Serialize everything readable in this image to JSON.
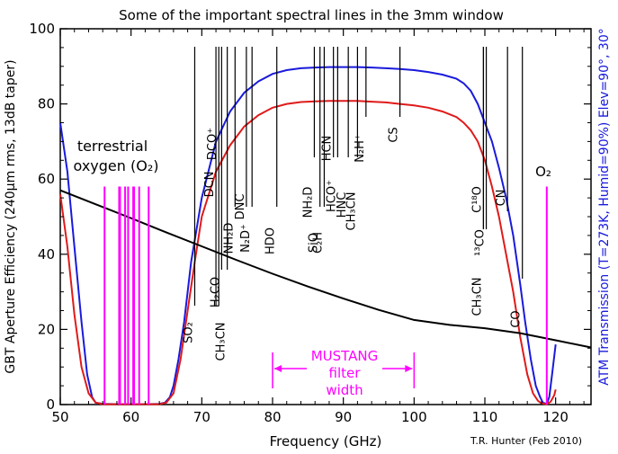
{
  "title": "Some of the important spectral lines in the 3mm window",
  "credit": "T.R. Hunter (Feb 2010)",
  "colors": {
    "blue": "#1a1adc",
    "red": "#e01a1a",
    "magenta": "#ff00ff",
    "black": "#000000"
  },
  "chart_data": {
    "type": "line",
    "title": "Some of the important spectral lines in the 3mm window",
    "xlabel": "Frequency (GHz)",
    "ylabel_left": "GBT Aperture Efficiency (240μm rms, 13dB taper)",
    "ylabel_right": "ATM Transmission (T=273K, Humid=90%) Elev=90°, 30°",
    "xlim": [
      50,
      125
    ],
    "ylim": [
      0,
      100
    ],
    "xticks": [
      50,
      60,
      70,
      80,
      90,
      100,
      110,
      120
    ],
    "yticks": [
      0,
      20,
      40,
      60,
      80,
      100
    ],
    "series": [
      {
        "name": "Elev=90°",
        "color": "#1a1adc",
        "x": [
          50,
          51,
          52,
          53,
          53.8,
          54.5,
          55,
          56,
          58,
          60,
          62,
          64,
          64.8,
          65.5,
          66,
          66.7,
          67.5,
          68.5,
          70,
          72,
          74,
          76,
          78,
          80,
          82,
          84,
          86,
          88,
          90,
          92,
          94,
          96,
          98,
          100,
          102,
          104,
          106,
          107,
          108,
          109,
          110,
          111,
          112,
          113,
          114,
          115,
          115.7,
          116.5,
          117.2,
          117.8,
          118.2,
          118.75,
          119.1,
          119.5,
          120
        ],
        "y": [
          75,
          62,
          42,
          22,
          8,
          2,
          0.5,
          0.2,
          0.1,
          0.1,
          0.1,
          0.2,
          0.5,
          2,
          5,
          12,
          22,
          38,
          55,
          70,
          78,
          83,
          86,
          88,
          89,
          89.5,
          89.7,
          89.8,
          89.8,
          89.8,
          89.7,
          89.5,
          89.3,
          89,
          88.5,
          87.8,
          86.7,
          85.5,
          83.5,
          80,
          75,
          70,
          63,
          55,
          45,
          32,
          22,
          12,
          5,
          2,
          0.5,
          0.2,
          2,
          8,
          16
        ]
      },
      {
        "name": "Elev=30°",
        "color": "#e01a1a",
        "x": [
          50,
          51,
          52,
          53,
          54,
          55,
          56,
          60,
          64,
          65,
          66,
          67,
          68,
          69,
          70,
          72,
          74,
          76,
          78,
          80,
          82,
          84,
          86,
          88,
          90,
          92,
          94,
          96,
          98,
          100,
          102,
          104,
          106,
          107,
          108,
          109,
          110,
          111,
          112,
          113,
          114,
          115,
          116,
          116.8,
          117.5,
          118,
          118.75,
          119.3,
          119.8,
          120
        ],
        "y": [
          56,
          42,
          24,
          10,
          3,
          0.5,
          0.1,
          0.1,
          0.1,
          0.5,
          3,
          12,
          25,
          38,
          50,
          62,
          69,
          74,
          77,
          79,
          80,
          80.5,
          80.7,
          80.8,
          80.8,
          80.8,
          80.6,
          80.4,
          80,
          79.6,
          79,
          78,
          76.5,
          75,
          73,
          70,
          65,
          58,
          50,
          40,
          30,
          18,
          8,
          3,
          1,
          0.3,
          0.1,
          0.8,
          2.5,
          4
        ]
      },
      {
        "name": "GBT Aperture Efficiency",
        "color": "#000000",
        "x": [
          50,
          55,
          60,
          65,
          70,
          75,
          80,
          85,
          90,
          95,
          100,
          105,
          110,
          115,
          120,
          125
        ],
        "y": [
          57,
          53.3,
          49.6,
          45.8,
          42.1,
          38.4,
          34.8,
          31.4,
          28.2,
          25.2,
          22.5,
          21.2,
          20.3,
          19.0,
          17.1,
          15.2
        ]
      }
    ],
    "o2_lines_ghz": [
      56.26,
      58.32,
      58.45,
      59.16,
      59.59,
      60.31,
      60.43,
      61.15,
      62.49
    ],
    "o2_118_ghz": 118.75,
    "spectral_lines": [
      {
        "ghz": 69.0,
        "label": "SO₂"
      },
      {
        "ghz": 72.0,
        "label": "DCN"
      },
      {
        "ghz": 72.4,
        "label": "DCO⁺"
      },
      {
        "ghz": 72.8,
        "label": "H₂CO"
      },
      {
        "ghz": 73.6,
        "label": "CH₃CN"
      },
      {
        "ghz": 74.7,
        "label": "NH₂D"
      },
      {
        "ghz": 76.3,
        "label": "DNC"
      },
      {
        "ghz": 77.1,
        "label": "N₂D⁺"
      },
      {
        "ghz": 80.6,
        "label": "HDO"
      },
      {
        "ghz": 85.9,
        "label": "NH₂D"
      },
      {
        "ghz": 86.7,
        "label": "SiO"
      },
      {
        "ghz": 87.3,
        "label": "C₂H"
      },
      {
        "ghz": 88.6,
        "label": "HCN"
      },
      {
        "ghz": 89.2,
        "label": "HCO⁺"
      },
      {
        "ghz": 90.7,
        "label": "HNC"
      },
      {
        "ghz": 92.0,
        "label": "CH₃CN"
      },
      {
        "ghz": 93.2,
        "label": "N₂H⁺"
      },
      {
        "ghz": 98.0,
        "label": "CS"
      },
      {
        "ghz": 110.2,
        "label": "¹³CO"
      },
      {
        "ghz": 109.8,
        "label": "CH₃CN"
      },
      {
        "ghz": 109.8,
        "label": "C¹⁸O"
      },
      {
        "ghz": 113.2,
        "label": "CN"
      },
      {
        "ghz": 115.3,
        "label": "CO"
      }
    ],
    "annotations": [
      {
        "text": "terrestrial"
      },
      {
        "text": "oxygen (O₂)"
      },
      {
        "text": "O₂"
      },
      {
        "text": "MUSTANG"
      },
      {
        "text": "filter"
      },
      {
        "text": "width"
      }
    ],
    "mustang_range_ghz": [
      80,
      100
    ],
    "grid": false
  }
}
